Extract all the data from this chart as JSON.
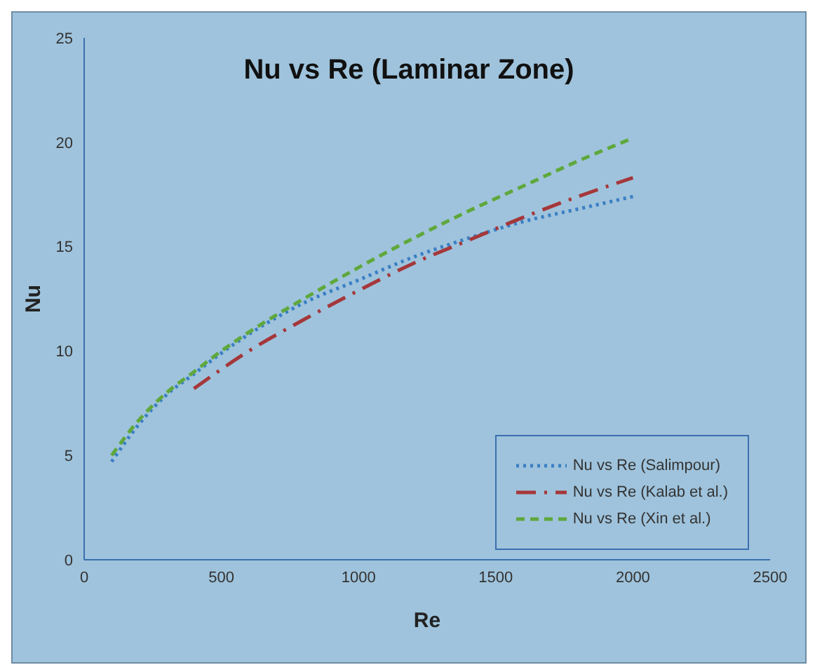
{
  "chart_data": {
    "type": "line",
    "title": "Nu vs Re (Laminar Zone)",
    "xlabel": "Re",
    "ylabel": "Nu",
    "xlim": [
      0,
      2500
    ],
    "xticks": [
      0,
      500,
      1000,
      1500,
      2000,
      2500
    ],
    "ylim": [
      0,
      25
    ],
    "yticks": [
      0,
      5,
      10,
      15,
      20,
      25
    ],
    "grid": false,
    "legend": "bottom right",
    "marker": "none",
    "series": [
      {
        "name": "Nu vs Re (Salimpour)",
        "color": "#3a7fc4",
        "line_style": "dotted",
        "x": [
          100,
          200,
          300,
          400,
          500,
          600,
          800,
          1000,
          1200,
          1400,
          1600,
          1800,
          2000
        ],
        "values": [
          4.7,
          6.5,
          7.9,
          8.9,
          9.9,
          10.8,
          12.3,
          13.4,
          14.5,
          15.4,
          16.2,
          16.8,
          17.4
        ]
      },
      {
        "name": "Nu vs Re (Kalab et al.)",
        "color": "#a5373a",
        "line_style": "dashed",
        "x": [
          400,
          600,
          800,
          1000,
          1200,
          1400,
          1600,
          1800,
          2000
        ],
        "values": [
          8.2,
          10.0,
          11.5,
          12.9,
          14.2,
          15.3,
          16.4,
          17.4,
          18.3
        ]
      },
      {
        "name": "Nu vs Re (Xin et al.)",
        "color": "#5fa83c",
        "line_style": "dashed",
        "x": [
          100,
          200,
          300,
          400,
          500,
          600,
          800,
          1000,
          1200,
          1400,
          1600,
          1800,
          2000
        ],
        "values": [
          5.0,
          6.7,
          8.0,
          9.0,
          10.0,
          10.9,
          12.5,
          14.0,
          15.4,
          16.7,
          17.9,
          19.1,
          20.2
        ]
      }
    ]
  }
}
